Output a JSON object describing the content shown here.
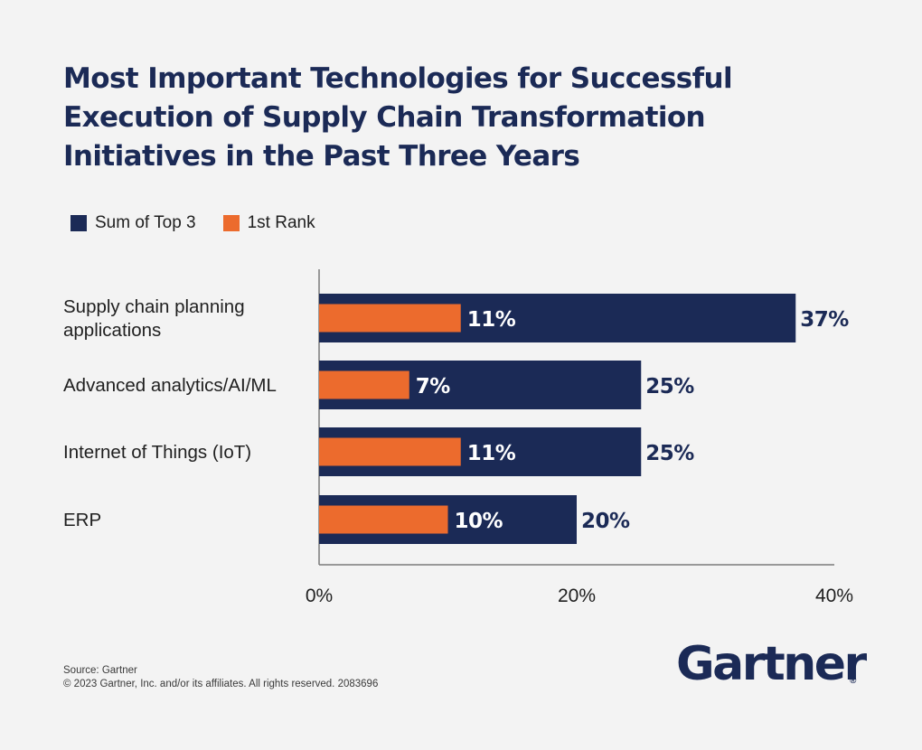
{
  "title_lines": [
    "Most Important Technologies for Successful",
    "Execution of Supply Chain Transformation",
    "Initiatives in the Past Three Years"
  ],
  "colors": {
    "series1": "#1b2a56",
    "series2": "#ec6b2d",
    "axis": "#7a7a7a",
    "text": "#1f1f1f"
  },
  "chart_data": {
    "type": "bar",
    "orientation": "horizontal",
    "title": "Most Important Technologies for Successful Execution of Supply Chain Transformation Initiatives in the Past Three Years",
    "categories": [
      "Supply chain planning applications",
      "Advanced analytics/AI/ML",
      "Internet of Things (IoT)",
      "ERP"
    ],
    "category_lines": [
      [
        "Supply chain planning",
        "applications"
      ],
      [
        "Advanced analytics/AI/ML"
      ],
      [
        "Internet of Things (IoT)"
      ],
      [
        "ERP"
      ]
    ],
    "series": [
      {
        "name": "Sum of Top 3",
        "values": [
          37,
          25,
          25,
          20
        ],
        "labels": [
          "37%",
          "25%",
          "25%",
          "20%"
        ]
      },
      {
        "name": "1st Rank",
        "values": [
          11,
          7,
          11,
          10
        ],
        "labels": [
          "11%",
          "7%",
          "11%",
          "10%"
        ]
      }
    ],
    "xlim": [
      0,
      40
    ],
    "xticks": [
      0,
      20,
      40
    ],
    "xtick_labels": [
      "0%",
      "20%",
      "40%"
    ],
    "grid": false,
    "legend_position": "top-left"
  },
  "footer": {
    "source": "Source: Gartner",
    "copyright": "© 2023 Gartner, Inc. and/or its affiliates. All rights reserved. 2083696"
  },
  "logo": {
    "text": "Gartner",
    "mark": "®"
  }
}
